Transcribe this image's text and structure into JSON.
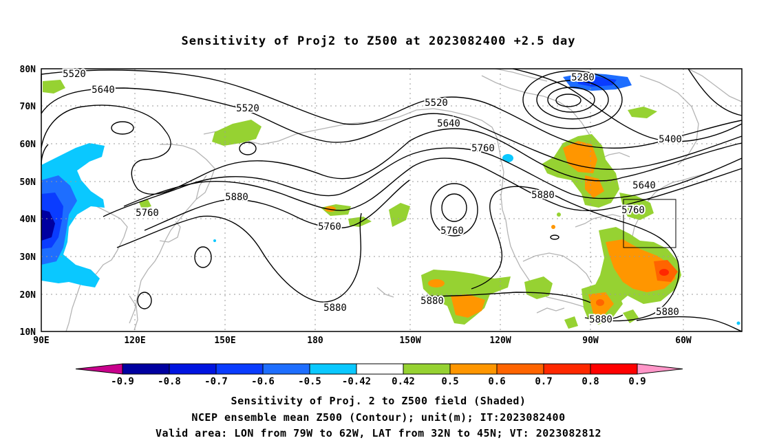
{
  "title": "Sensitivity of Proj2 to Z500 at 2023082400 +2.5 day",
  "lat_labels": [
    "80N",
    "70N",
    "60N",
    "50N",
    "40N",
    "30N",
    "20N",
    "10N"
  ],
  "lon_labels": [
    "90E",
    "120E",
    "150E",
    "180",
    "150W",
    "120W",
    "90W",
    "60W"
  ],
  "contour_labels": [
    {
      "text": "5520"
    },
    {
      "text": "5640"
    },
    {
      "text": "5520"
    },
    {
      "text": "5520"
    },
    {
      "text": "5640"
    },
    {
      "text": "5280"
    },
    {
      "text": "5400"
    },
    {
      "text": "5640"
    },
    {
      "text": "5760"
    },
    {
      "text": "5760"
    },
    {
      "text": "5880"
    },
    {
      "text": "5760"
    },
    {
      "text": "5760"
    },
    {
      "text": "5880"
    },
    {
      "text": "5760"
    },
    {
      "text": "5880"
    },
    {
      "text": "5880"
    },
    {
      "text": "5880"
    },
    {
      "text": "5880"
    }
  ],
  "colorbar": {
    "colors": [
      "#0000a0",
      "#0014e0",
      "#0a3cff",
      "#1e6eff",
      "#0ac8ff",
      "#ffffff",
      "#96d232",
      "#ff9600",
      "#ff6400",
      "#ff2800",
      "#ff0000"
    ],
    "under_color": "#c8008c",
    "over_color": "#ff96c8",
    "tick_labels": [
      "-0.9",
      "-0.8",
      "-0.7",
      "-0.6",
      "-0.5",
      "-0.42",
      "0.42",
      "0.5",
      "0.6",
      "0.7",
      "0.8",
      "0.9"
    ]
  },
  "captions": [
    "Sensitivity of Proj. 2 to Z500 field (Shaded)",
    "NCEP ensemble mean Z500 (Contour); unit(m); IT:2023082400",
    "Valid area: LON from 79W to 62W, LAT from 32N to 45N; VT: 2023082812"
  ]
}
